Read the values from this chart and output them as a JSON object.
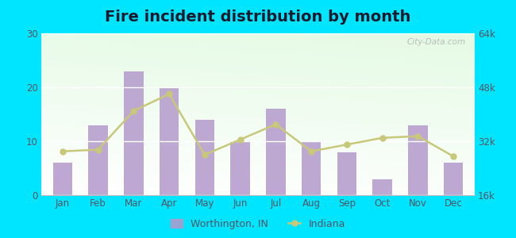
{
  "title": "Fire incident distribution by month",
  "months": [
    "Jan",
    "Feb",
    "Mar",
    "Apr",
    "May",
    "Jun",
    "Jul",
    "Aug",
    "Sep",
    "Oct",
    "Nov",
    "Dec"
  ],
  "worthington_values": [
    6,
    13,
    23,
    20,
    14,
    10,
    16,
    10,
    8,
    3,
    13,
    6
  ],
  "indiana_values": [
    29000,
    29500,
    41000,
    46000,
    28000,
    32500,
    37000,
    29000,
    31000,
    33000,
    33500,
    27500
  ],
  "bar_color": "#b399cc",
  "bar_alpha": 0.85,
  "line_color": "#c8c87a",
  "line_marker": "o",
  "left_ylim": [
    0,
    30
  ],
  "right_ylim": [
    16000,
    64000
  ],
  "left_yticks": [
    0,
    10,
    20,
    30
  ],
  "right_yticks": [
    16000,
    32000,
    48000,
    64000
  ],
  "right_yticklabels": [
    "16k",
    "32k",
    "48k",
    "64k"
  ],
  "outer_bg": "#00e5ff",
  "title_fontsize": 14,
  "title_color": "#1a1a2e",
  "tick_color": "#555566",
  "legend_label1": "Worthington, IN",
  "legend_label2": "Indiana",
  "watermark": "City-Data.com"
}
